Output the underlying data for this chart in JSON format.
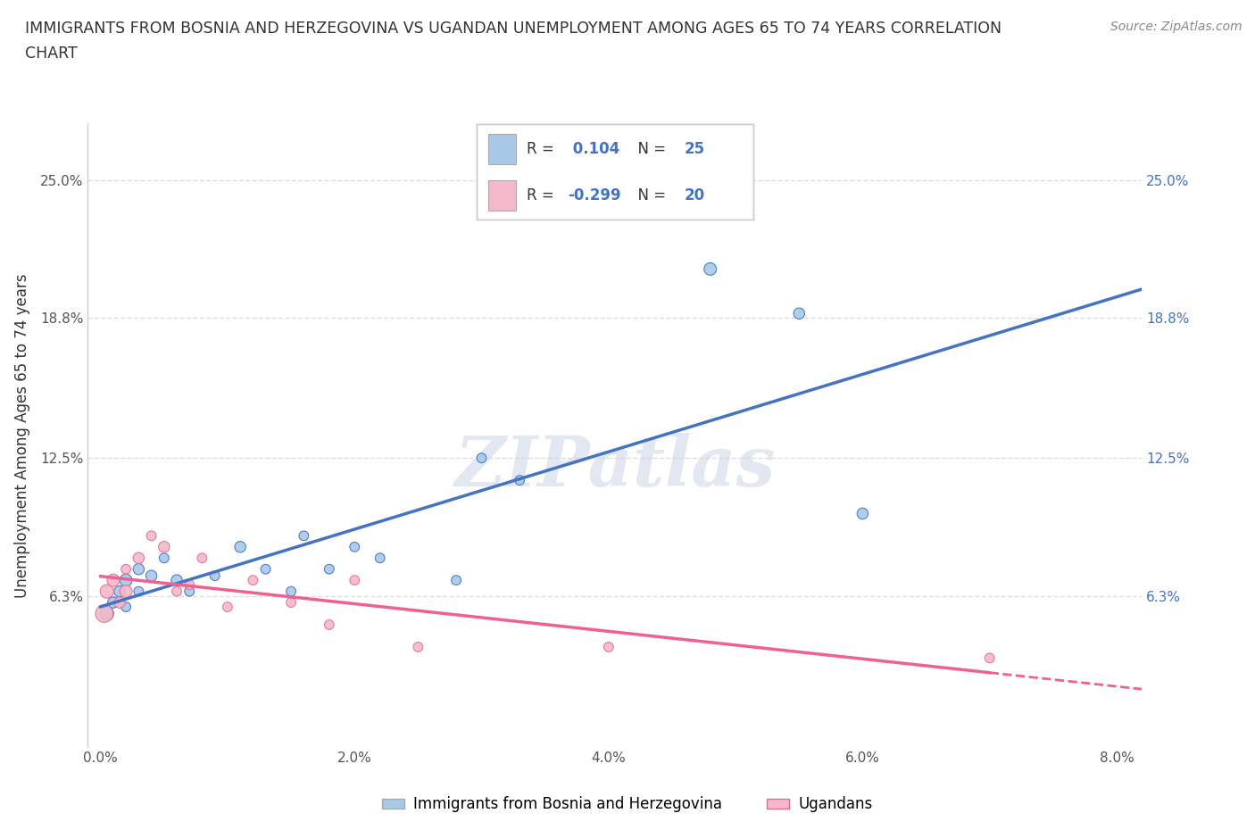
{
  "title_line1": "IMMIGRANTS FROM BOSNIA AND HERZEGOVINA VS UGANDAN UNEMPLOYMENT AMONG AGES 65 TO 74 YEARS CORRELATION",
  "title_line2": "CHART",
  "source": "Source: ZipAtlas.com",
  "ylabel": "Unemployment Among Ages 65 to 74 years",
  "xlim": [
    -0.001,
    0.082
  ],
  "ylim": [
    -0.005,
    0.275
  ],
  "yticks": [
    0.0,
    0.063,
    0.125,
    0.188,
    0.25
  ],
  "ytick_labels_left": [
    "",
    "6.3%",
    "12.5%",
    "18.8%",
    "25.0%"
  ],
  "ytick_labels_right": [
    "",
    "6.3%",
    "12.5%",
    "18.8%",
    "25.0%"
  ],
  "xticks": [
    0.0,
    0.02,
    0.04,
    0.06,
    0.08
  ],
  "xtick_labels": [
    "0.0%",
    "2.0%",
    "4.0%",
    "6.0%",
    "8.0%"
  ],
  "blue_color": "#a8c8e8",
  "pink_color": "#f4b8c8",
  "blue_line_color": "#4472c4",
  "pink_line_color": "#f06090",
  "R_blue": 0.104,
  "N_blue": 25,
  "R_pink": -0.299,
  "N_pink": 20,
  "legend_label_blue": "Immigrants from Bosnia and Herzegovina",
  "legend_label_pink": "Ugandans",
  "watermark": "ZIPatlas",
  "blue_scatter_x": [
    0.0005,
    0.001,
    0.0015,
    0.002,
    0.002,
    0.003,
    0.003,
    0.004,
    0.005,
    0.006,
    0.007,
    0.009,
    0.011,
    0.013,
    0.015,
    0.016,
    0.018,
    0.02,
    0.022,
    0.028,
    0.03,
    0.033,
    0.048,
    0.055,
    0.06
  ],
  "blue_scatter_y": [
    0.055,
    0.06,
    0.065,
    0.058,
    0.07,
    0.065,
    0.075,
    0.072,
    0.08,
    0.07,
    0.065,
    0.072,
    0.085,
    0.075,
    0.065,
    0.09,
    0.075,
    0.085,
    0.08,
    0.07,
    0.125,
    0.115,
    0.21,
    0.19,
    0.1
  ],
  "blue_scatter_sizes": [
    120,
    80,
    80,
    60,
    100,
    60,
    80,
    80,
    60,
    80,
    60,
    60,
    80,
    60,
    60,
    60,
    60,
    60,
    60,
    60,
    60,
    60,
    100,
    80,
    80
  ],
  "pink_scatter_x": [
    0.0003,
    0.0005,
    0.001,
    0.0015,
    0.002,
    0.002,
    0.003,
    0.004,
    0.005,
    0.006,
    0.007,
    0.008,
    0.01,
    0.012,
    0.015,
    0.018,
    0.02,
    0.025,
    0.04,
    0.07
  ],
  "pink_scatter_y": [
    0.055,
    0.065,
    0.07,
    0.06,
    0.065,
    0.075,
    0.08,
    0.09,
    0.085,
    0.065,
    0.068,
    0.08,
    0.058,
    0.07,
    0.06,
    0.05,
    0.07,
    0.04,
    0.04,
    0.035
  ],
  "pink_scatter_sizes": [
    200,
    120,
    100,
    80,
    100,
    60,
    80,
    60,
    80,
    60,
    60,
    60,
    60,
    60,
    60,
    60,
    60,
    60,
    60,
    60
  ],
  "background_color": "#ffffff",
  "grid_color": "#dddddd"
}
